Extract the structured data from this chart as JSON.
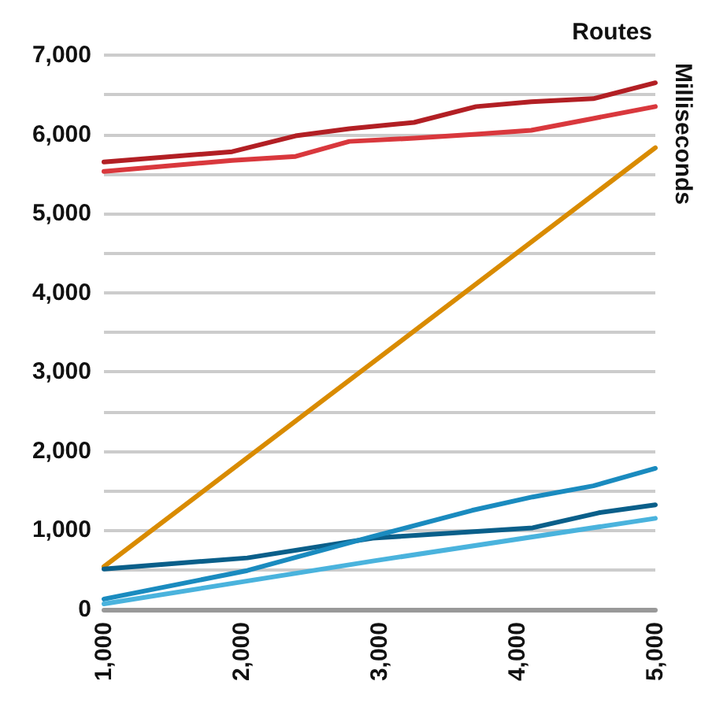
{
  "chart_data": {
    "type": "line",
    "xlabel": "Routes",
    "ylabel": "Milliseconds",
    "xlim": [
      1000,
      5000
    ],
    "xticks": [
      {
        "value": 1000,
        "label": "1,000"
      },
      {
        "value": 2000,
        "label": "2,000"
      },
      {
        "value": 3000,
        "label": "3,000"
      },
      {
        "value": 4000,
        "label": "4,000"
      },
      {
        "value": 5000,
        "label": "5,000"
      }
    ],
    "ylim": [
      0,
      7000
    ],
    "yticks": [
      0,
      {
        "value": 500,
        "label": null
      },
      {
        "value": 1000,
        "label": "1,000"
      },
      {
        "value": 1500,
        "label": null
      },
      {
        "value": 2000,
        "label": "2,000"
      },
      {
        "value": 2500,
        "label": null
      },
      {
        "value": 3000,
        "label": "3,000"
      },
      {
        "value": 3500,
        "label": null
      },
      {
        "value": 4000,
        "label": "4,000"
      },
      {
        "value": 4500,
        "label": null
      },
      {
        "value": 5000,
        "label": "5,000"
      },
      {
        "value": 5500,
        "label": null
      },
      {
        "value": 6000,
        "label": "6,000"
      },
      {
        "value": 6500,
        "label": null
      },
      {
        "value": 7000,
        "label": "7,000"
      }
    ],
    "grid": "y",
    "marker": "none",
    "line_style": "solid",
    "series": [
      {
        "color": "#b21f24",
        "x": [
          1000,
          1930,
          2390,
          2780,
          3250,
          3700,
          4100,
          4550,
          5000
        ],
        "values": [
          5650,
          5780,
          5980,
          6070,
          6150,
          6350,
          6410,
          6450,
          6650
        ]
      },
      {
        "color": "#d9383d",
        "x": [
          1000,
          1930,
          2390,
          2780,
          3250,
          3700,
          4100,
          4550,
          5000
        ],
        "values": [
          5530,
          5670,
          5720,
          5910,
          5950,
          6000,
          6050,
          6200,
          6350
        ]
      },
      {
        "color": "#d98b00",
        "x": [
          1000,
          5000
        ],
        "values": [
          540,
          5830
        ]
      },
      {
        "color": "#0a5f8a",
        "x": [
          1000,
          2040,
          2950,
          4110,
          4590,
          5000
        ],
        "values": [
          510,
          650,
          900,
          1030,
          1220,
          1320
        ]
      },
      {
        "color": "#1a8bbf",
        "x": [
          1000,
          2040,
          2950,
          3670,
          4110,
          4550,
          5000
        ],
        "values": [
          130,
          490,
          920,
          1250,
          1420,
          1560,
          1780
        ]
      },
      {
        "color": "#4ab3dd",
        "x": [
          1000,
          2950,
          5000
        ],
        "values": [
          70,
          610,
          1150
        ]
      }
    ]
  }
}
